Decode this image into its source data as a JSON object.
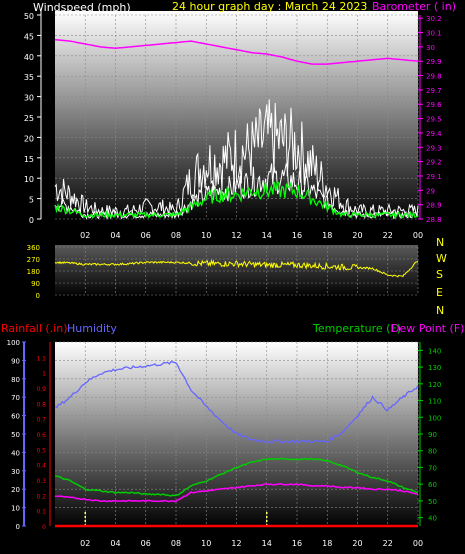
{
  "colors": {
    "wind": "#ffffff",
    "wind_avg": "#00ff00",
    "barometer": "#ff00ff",
    "direction": "#ffff00",
    "rain": "#ff0000",
    "humidity": "#6666ff",
    "temperature": "#00cc00",
    "dewpoint": "#ff00ff",
    "axis_white": "#ffffff"
  },
  "chart_data": [
    {
      "type": "line",
      "title": "24 hour graph day : March 24 2023",
      "ylabel_left": "Windspeed (mph)",
      "ylabel_right": "Barometer ( in)",
      "x_ticks": [
        "02",
        "04",
        "06",
        "08",
        "10",
        "12",
        "14",
        "16",
        "18",
        "20",
        "22",
        "00"
      ],
      "y_left_ticks": [
        "0",
        "5",
        "10",
        "15",
        "20",
        "25",
        "30",
        "35",
        "40",
        "45",
        "50"
      ],
      "y_left_lim": [
        0,
        50
      ],
      "y_right_ticks": [
        "28.8",
        "28.9",
        "29",
        "29.1",
        "29.2",
        "29.3",
        "29.4",
        "29.5",
        "29.6",
        "29.7",
        "29.8",
        "29.9",
        "30",
        "30.1",
        "30.2"
      ],
      "y_right_lim": [
        28.8,
        30.25
      ],
      "grid": true,
      "x_hours": [
        0,
        1,
        2,
        3,
        4,
        5,
        6,
        7,
        8,
        9,
        10,
        11,
        12,
        13,
        14,
        15,
        16,
        17,
        18,
        19,
        20,
        21,
        22,
        23,
        24
      ],
      "series": [
        {
          "key": "gust",
          "axis": "left",
          "values": [
            8,
            6,
            3,
            2,
            2,
            2,
            3,
            3,
            2,
            10,
            14,
            14,
            16,
            17,
            20,
            19,
            18,
            13,
            8,
            4,
            2,
            2,
            2,
            2,
            2
          ]
        },
        {
          "key": "wind",
          "axis": "left",
          "values": [
            4,
            3,
            1,
            1,
            1,
            1,
            1,
            1,
            1,
            4,
            6,
            7,
            8,
            9,
            10,
            10,
            9,
            7,
            4,
            2,
            1,
            1,
            1,
            1,
            1
          ]
        },
        {
          "key": "wind_avg",
          "axis": "left",
          "values": [
            3,
            2,
            1,
            1,
            1,
            1,
            1,
            1,
            1,
            3,
            5,
            6,
            6,
            7,
            7,
            7,
            7,
            5,
            3,
            1,
            1,
            1,
            1,
            1,
            1
          ]
        },
        {
          "key": "barometer",
          "axis": "right",
          "values": [
            30.05,
            30.04,
            30.02,
            30.0,
            29.99,
            30.0,
            30.01,
            30.02,
            30.03,
            30.04,
            30.02,
            30.0,
            29.98,
            29.96,
            29.95,
            29.93,
            29.9,
            29.88,
            29.88,
            29.89,
            29.9,
            29.91,
            29.92,
            29.91,
            29.9
          ]
        }
      ]
    },
    {
      "type": "line",
      "y_left_ticks": [
        "360",
        "270",
        "180",
        "90",
        "0"
      ],
      "y_left_lim": [
        0,
        360
      ],
      "y_right_labels": [
        "N",
        "W",
        "S",
        "E",
        "N"
      ],
      "grid": true,
      "x_hours": [
        0,
        1,
        2,
        3,
        4,
        5,
        6,
        7,
        8,
        9,
        10,
        11,
        12,
        13,
        14,
        15,
        16,
        17,
        18,
        19,
        20,
        21,
        22,
        23,
        24
      ],
      "series": [
        {
          "key": "direction",
          "values": [
            245,
            240,
            230,
            230,
            230,
            235,
            245,
            245,
            245,
            240,
            235,
            235,
            235,
            230,
            225,
            225,
            225,
            220,
            215,
            210,
            205,
            200,
            150,
            140,
            260
          ]
        }
      ]
    },
    {
      "type": "line",
      "ylabel_rain": "Rainfall (.in)",
      "ylabel_humidity": "Humidity",
      "ylabel_temp": "Temperature (F)",
      "ylabel_dew": "Dew Point (F)",
      "x_ticks": [
        "02",
        "04",
        "06",
        "08",
        "10",
        "12",
        "14",
        "16",
        "18",
        "20",
        "22",
        "00"
      ],
      "hum_ticks": [
        "0",
        "10",
        "20",
        "30",
        "40",
        "50",
        "60",
        "70",
        "80",
        "90",
        "100"
      ],
      "hum_lim": [
        0,
        100
      ],
      "rain_ticks": [
        "0",
        "0.1",
        "0.2",
        "0.3",
        "0.4",
        "0.5",
        "0.6",
        "0.7",
        "0.8",
        "0.9",
        "1",
        "1.1"
      ],
      "rain_lim": [
        0,
        1.2
      ],
      "temp_ticks": [
        "40",
        "50",
        "60",
        "70",
        "80",
        "90",
        "100",
        "110",
        "120",
        "130",
        "140"
      ],
      "temp_lim": [
        35,
        145
      ],
      "grid": true,
      "x_hours": [
        0,
        1,
        2,
        3,
        4,
        5,
        6,
        7,
        8,
        9,
        10,
        11,
        12,
        13,
        14,
        15,
        16,
        17,
        18,
        19,
        20,
        21,
        22,
        23,
        24
      ],
      "series": [
        {
          "key": "humidity",
          "axis": "hum",
          "values": [
            64,
            70,
            78,
            83,
            85,
            86,
            87,
            88,
            89,
            74,
            65,
            57,
            50,
            47,
            46,
            46,
            46,
            46,
            46,
            51,
            60,
            70,
            63,
            70,
            76
          ]
        },
        {
          "key": "temperature",
          "axis": "temp",
          "values": [
            65,
            62,
            57,
            56,
            55,
            55,
            54,
            54,
            53,
            59,
            62,
            66,
            70,
            73,
            75,
            75,
            75,
            75,
            74,
            71,
            67,
            64,
            62,
            58,
            55
          ]
        },
        {
          "key": "dewpoint",
          "axis": "temp",
          "values": [
            53,
            52,
            51,
            50,
            50,
            50,
            50,
            50,
            50,
            55,
            56,
            57,
            58,
            59,
            60,
            60,
            60,
            59,
            59,
            58,
            58,
            57,
            57,
            56,
            54
          ]
        },
        {
          "key": "rain",
          "axis": "rain",
          "values": [
            0,
            0,
            0,
            0,
            0,
            0,
            0,
            0,
            0,
            0,
            0,
            0,
            0,
            0,
            0,
            0,
            0,
            0,
            0,
            0,
            0,
            0,
            0,
            0,
            0
          ]
        }
      ]
    }
  ]
}
